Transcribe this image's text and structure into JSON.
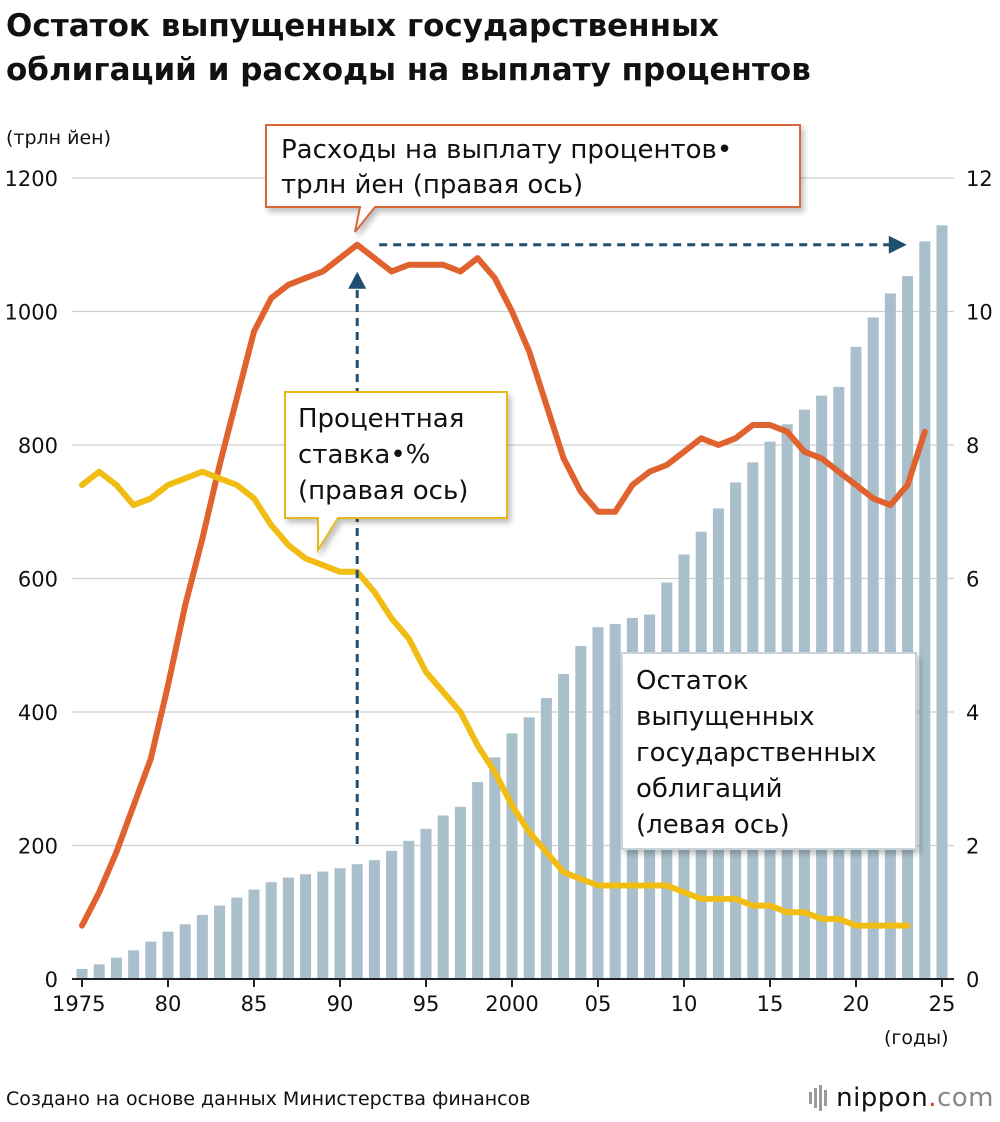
{
  "title": {
    "line1": "Остаток выпущенных государственных",
    "line2": "облигаций и расходы на выплату процентов"
  },
  "source": "Создано на основе данных Министерства финансов",
  "logo": {
    "main": "nippon",
    "dot": ".",
    "tld": "com"
  },
  "chart_data": {
    "type": "bar+line",
    "left_axis": {
      "unit_label": "(трлн йен)",
      "min": 0,
      "max": 1200,
      "ticks": [
        0,
        200,
        400,
        600,
        800,
        1000,
        1200
      ]
    },
    "right_axis": {
      "min": 0,
      "max": 12,
      "ticks": [
        0,
        2,
        4,
        6,
        8,
        10,
        12
      ]
    },
    "x_axis": {
      "unit_label": "(годы)",
      "tick_years": [
        1975,
        1980,
        1985,
        1990,
        1995,
        2000,
        2005,
        2010,
        2015,
        2020,
        2025
      ],
      "tick_labels": [
        "1975",
        "80",
        "85",
        "90",
        "95",
        "2000",
        "05",
        "10",
        "15",
        "20",
        "25"
      ]
    },
    "years": [
      1975,
      1976,
      1977,
      1978,
      1979,
      1980,
      1981,
      1982,
      1983,
      1984,
      1985,
      1986,
      1987,
      1988,
      1989,
      1990,
      1991,
      1992,
      1993,
      1994,
      1995,
      1996,
      1997,
      1998,
      1999,
      2000,
      2001,
      2002,
      2003,
      2004,
      2005,
      2006,
      2007,
      2008,
      2009,
      2010,
      2011,
      2012,
      2013,
      2014,
      2015,
      2016,
      2017,
      2018,
      2019,
      2020,
      2021,
      2022,
      2023,
      2024,
      2025
    ],
    "series": [
      {
        "name": "Остаток выпущенных государственных облигаций (левая ось)",
        "type": "bar",
        "axis": "left",
        "color": "#a9bfcb",
        "values": [
          15,
          22,
          32,
          43,
          56,
          71,
          82,
          96,
          110,
          122,
          134,
          145,
          152,
          157,
          161,
          166,
          172,
          178,
          192,
          207,
          225,
          245,
          258,
          295,
          332,
          368,
          392,
          421,
          457,
          499,
          527,
          532,
          541,
          546,
          594,
          636,
          670,
          705,
          744,
          774,
          805,
          831,
          853,
          874,
          887,
          947,
          991,
          1027,
          1053,
          1105,
          1129
        ]
      },
      {
        "name": "Расходы на выплату процентов•трлн йен (правая ось)",
        "type": "line",
        "axis": "right",
        "color": "#e0622e",
        "values": [
          0.8,
          1.3,
          1.9,
          2.6,
          3.3,
          4.4,
          5.6,
          6.6,
          7.7,
          8.7,
          9.7,
          10.2,
          10.4,
          10.5,
          10.6,
          10.8,
          11.0,
          10.8,
          10.6,
          10.7,
          10.7,
          10.7,
          10.6,
          10.8,
          10.5,
          10.0,
          9.4,
          8.6,
          7.8,
          7.3,
          7.0,
          7.0,
          7.4,
          7.6,
          7.7,
          7.9,
          8.1,
          8.0,
          8.1,
          8.3,
          8.3,
          8.2,
          7.9,
          7.8,
          7.6,
          7.4,
          7.2,
          7.1,
          7.4,
          8.2
        ]
      },
      {
        "name": "Процентная ставка•% (правая ось)",
        "type": "line",
        "axis": "right",
        "color": "#f1bd14",
        "values": [
          7.4,
          7.6,
          7.4,
          7.1,
          7.2,
          7.4,
          7.5,
          7.6,
          7.5,
          7.4,
          7.2,
          6.8,
          6.5,
          6.3,
          6.2,
          6.1,
          6.1,
          5.8,
          5.4,
          5.1,
          4.6,
          4.3,
          4.0,
          3.5,
          3.1,
          2.6,
          2.2,
          1.9,
          1.6,
          1.5,
          1.4,
          1.4,
          1.4,
          1.4,
          1.4,
          1.3,
          1.2,
          1.2,
          1.2,
          1.1,
          1.1,
          1.0,
          1.0,
          0.9,
          0.9,
          0.8,
          0.8,
          0.8,
          0.8
        ]
      }
    ],
    "annotations": {
      "interest_expense_label": {
        "line1": "Расходы на выплату процентов•",
        "line2": "трлн йен (правая ось)"
      },
      "interest_rate_label": {
        "line1": "Процентная",
        "line2": "ставка•%",
        "line3": "(правая ось)"
      },
      "bonds_label": {
        "line1": "Остаток",
        "line2": "выпущенных",
        "line3": "государственных",
        "line4": "облигаций",
        "line5": "(левая ось)"
      },
      "peak_marker_year": 1991,
      "arrow_to_year": 2024
    }
  }
}
